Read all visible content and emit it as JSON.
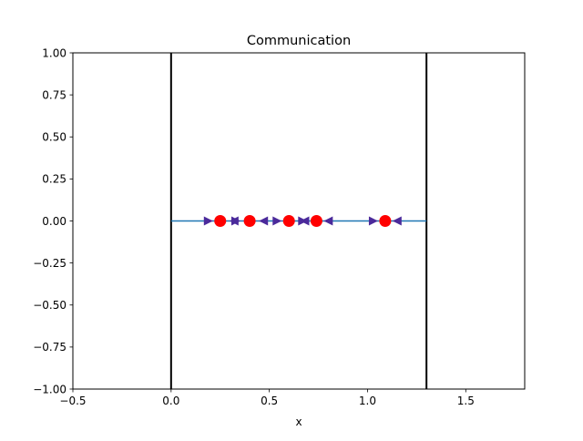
{
  "chart_data": {
    "type": "scatter",
    "title": "Communication",
    "xlabel": "x",
    "ylabel": "",
    "xlim": [
      -0.5,
      1.8
    ],
    "ylim": [
      -1.0,
      1.0
    ],
    "x_ticks": [
      -0.5,
      0.0,
      0.5,
      1.0,
      1.5
    ],
    "x_tick_labels": [
      "−0.5",
      "0.0",
      "0.5",
      "1.0",
      "1.5"
    ],
    "y_ticks": [
      -1.0,
      -0.75,
      -0.5,
      -0.25,
      0.0,
      0.25,
      0.5,
      0.75,
      1.0
    ],
    "y_tick_labels": [
      "−1.00",
      "−0.75",
      "−0.50",
      "−0.25",
      "0.00",
      "0.25",
      "0.50",
      "0.75",
      "1.00"
    ],
    "grid": false,
    "boundaries": {
      "x": [
        0.0,
        1.3
      ],
      "color": "#000000"
    },
    "segment": {
      "x": [
        0.0,
        1.3
      ],
      "y": 0.0,
      "color": "#1f77b4"
    },
    "points": {
      "x": [
        0.25,
        0.4,
        0.6,
        0.74,
        1.09
      ],
      "y": [
        0.0,
        0.0,
        0.0,
        0.0,
        0.0
      ],
      "color": "#ff0000"
    },
    "right_arrows": {
      "x": [
        0.19,
        0.33,
        0.54,
        0.67,
        1.03
      ],
      "color": "#4b2a9b"
    },
    "left_arrows": {
      "x": [
        0.32,
        0.47,
        0.68,
        0.8,
        1.15
      ],
      "color": "#4b2a9b"
    }
  }
}
